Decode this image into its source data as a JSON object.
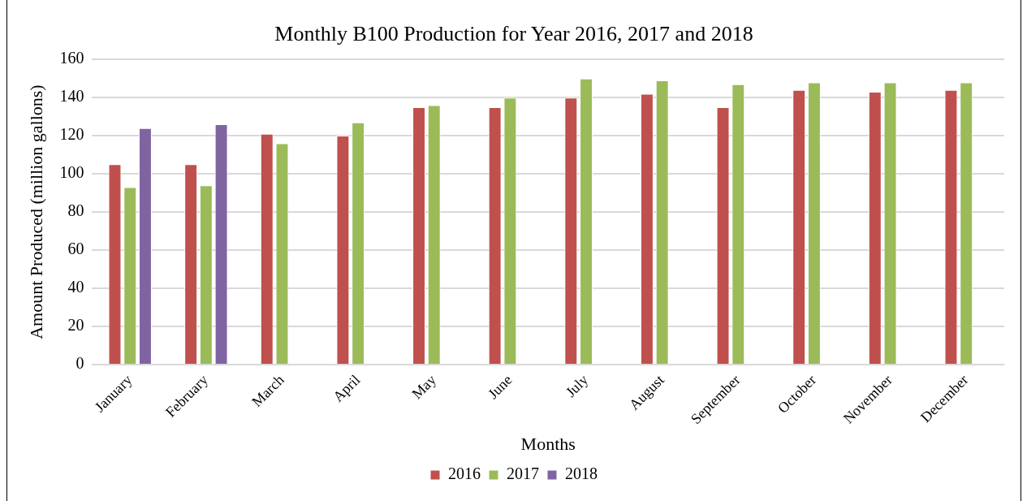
{
  "chart_data": {
    "type": "bar",
    "title": "Monthly B100 Production for Year 2016, 2017 and 2018",
    "xlabel": "Months",
    "ylabel": "Amount Produced (million gallons)",
    "categories": [
      "January",
      "February",
      "March",
      "April",
      "May",
      "June",
      "July",
      "August",
      "September",
      "October",
      "November",
      "December"
    ],
    "series": [
      {
        "name": "2016",
        "color": "#c0504d",
        "values": [
          105,
          105,
          121,
          120,
          135,
          135,
          140,
          142,
          135,
          144,
          143,
          144
        ]
      },
      {
        "name": "2017",
        "color": "#9bbb59",
        "values": [
          93,
          94,
          116,
          127,
          136,
          140,
          150,
          149,
          147,
          148,
          148,
          148
        ]
      },
      {
        "name": "2018",
        "color": "#8064a2",
        "values": [
          124,
          126,
          null,
          null,
          null,
          null,
          null,
          null,
          null,
          null,
          null,
          null
        ]
      }
    ],
    "ylim": [
      0,
      160
    ],
    "yticks": [
      0,
      20,
      40,
      60,
      80,
      100,
      120,
      140,
      160
    ],
    "grid": "y",
    "legend": "bottom"
  }
}
